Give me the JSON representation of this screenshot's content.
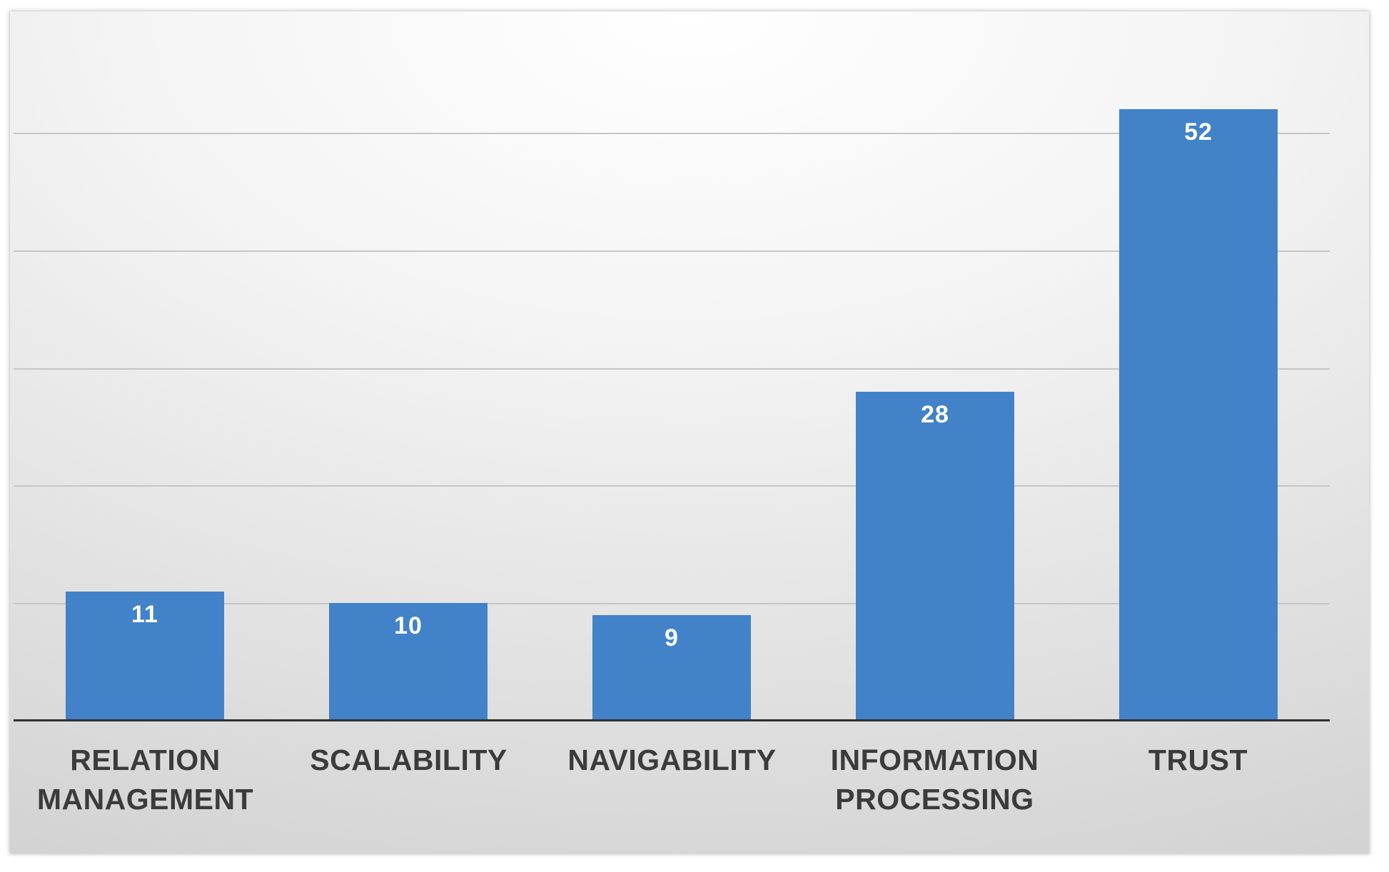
{
  "chart_data": {
    "type": "bar",
    "title": "",
    "xlabel": "",
    "ylabel": "",
    "categories": [
      "RELATION MANAGEMENT",
      "SCALABILITY",
      "NAVIGABILITY",
      "INFORMATION PROCESSING",
      "TRUST"
    ],
    "values": [
      11,
      10,
      9,
      28,
      52
    ],
    "value_labels": [
      "11",
      "10",
      "9",
      "28",
      "52"
    ],
    "ylim": [
      0,
      55
    ],
    "gridline_values": [
      10,
      20,
      30,
      40,
      50
    ],
    "grid": true,
    "legend": false,
    "data_labels_position": "inside-top",
    "colors": {
      "bar": "#4282c8",
      "value_label": "#ffffff",
      "category_label": "#3b3b3b",
      "axis_line": "#2f2f2f",
      "gridline": "#c6c6c6",
      "page_background": "#ffffff",
      "panel_gradient": [
        "#ffffff",
        "#f4f4f4",
        "#e3e3e3",
        "#d4d4d4",
        "#c9c9c9"
      ]
    }
  }
}
